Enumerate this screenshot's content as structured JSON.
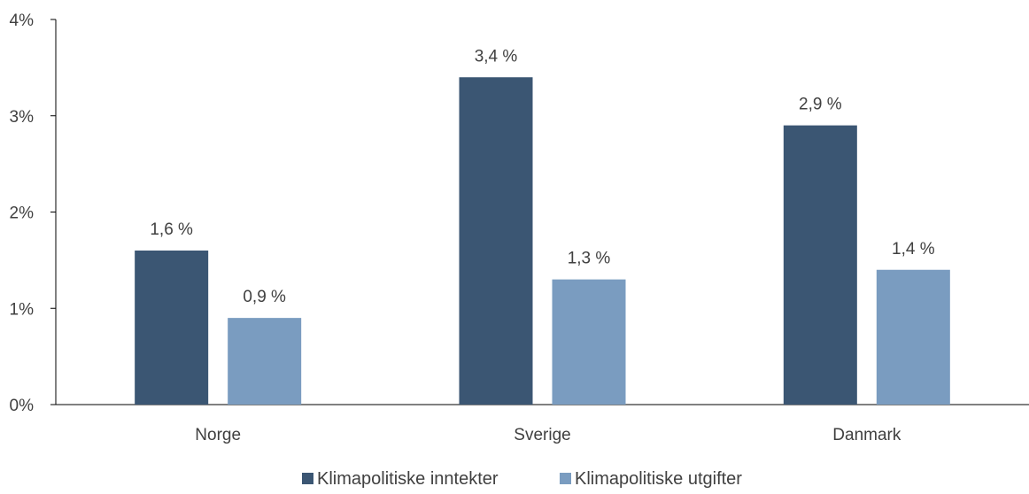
{
  "chart_data": {
    "type": "bar",
    "categories": [
      "Norge",
      "Sverige",
      "Danmark"
    ],
    "series": [
      {
        "name": "Klimapolitiske inntekter",
        "values": [
          1.6,
          3.4,
          2.9
        ],
        "labels": [
          "1,6 %",
          "3,4 %",
          "2,9 %"
        ],
        "color": "#3b5673"
      },
      {
        "name": "Klimapolitiske utgifter",
        "values": [
          0.9,
          1.3,
          1.4
        ],
        "labels": [
          "0,9 %",
          "1,3 %",
          "1,4 %"
        ],
        "color": "#7a9cc0"
      }
    ],
    "y_ticks": [
      0,
      1,
      2,
      3,
      4
    ],
    "y_tick_labels": [
      "0%",
      "1%",
      "2%",
      "3%",
      "4%"
    ],
    "ylim": [
      0,
      4
    ],
    "grid": false,
    "legend_position": "bottom-center",
    "title": "",
    "xlabel": "",
    "ylabel": ""
  }
}
